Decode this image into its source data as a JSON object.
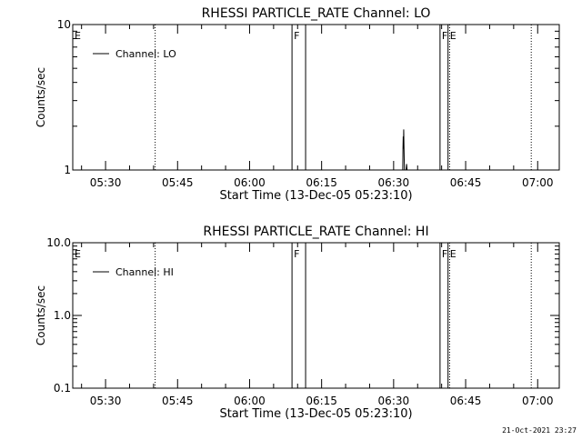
{
  "footer": {
    "timestamp": "21-Oct-2021 23:27"
  },
  "chart_data": [
    {
      "type": "line",
      "title": "RHESSI PARTICLE_RATE Channel: LO",
      "xlabel": "Start Time (13-Dec-05 05:23:10)",
      "ylabel": "Counts/sec",
      "xlim": [
        "05:23:10",
        "07:04:30"
      ],
      "ylim": [
        1,
        10
      ],
      "yscale": "log",
      "xticks": [
        "05:30",
        "05:45",
        "06:00",
        "06:15",
        "06:30",
        "06:45",
        "07:00"
      ],
      "yticks": [
        "1",
        "10"
      ],
      "legend": {
        "placement": "top-left",
        "entries": [
          "Channel: LO"
        ]
      },
      "series": [
        {
          "name": "Channel: LO",
          "points": [
            [
              "06:31:54",
              1.0
            ],
            [
              "06:31:57",
              1.4
            ],
            [
              "06:32:00",
              1.7
            ],
            [
              "06:32:03",
              1.4
            ],
            [
              "06:32:06",
              1.9
            ],
            [
              "06:32:09",
              1.5
            ],
            [
              "06:32:12",
              1.2
            ],
            [
              "06:32:15",
              1.0
            ],
            [
              "06:32:36",
              1.0
            ],
            [
              "06:32:42",
              1.1
            ],
            [
              "06:32:48",
              1.0
            ]
          ]
        }
      ],
      "markers": [
        {
          "time": "05:23:10",
          "label": "E",
          "style": "solid"
        },
        {
          "time": "05:40:20",
          "label": "",
          "style": "dotted"
        },
        {
          "time": "06:08:50",
          "label": "F",
          "style": "solid"
        },
        {
          "time": "06:11:40",
          "label": "",
          "style": "solid"
        },
        {
          "time": "06:39:40",
          "label": "F",
          "style": "solid"
        },
        {
          "time": "06:41:20",
          "label": "E",
          "style": "solid"
        },
        {
          "time": "06:41:40",
          "label": "",
          "style": "dotted"
        },
        {
          "time": "06:58:40",
          "label": "",
          "style": "dotted"
        }
      ]
    },
    {
      "type": "line",
      "title": "RHESSI PARTICLE_RATE Channel: HI",
      "xlabel": "Start Time (13-Dec-05 05:23:10)",
      "ylabel": "Counts/sec",
      "xlim": [
        "05:23:10",
        "07:04:30"
      ],
      "ylim": [
        0.1,
        10
      ],
      "yscale": "log",
      "xticks": [
        "05:30",
        "05:45",
        "06:00",
        "06:15",
        "06:30",
        "06:45",
        "07:00"
      ],
      "yticks": [
        "0.1",
        "1.0",
        "10.0"
      ],
      "legend": {
        "placement": "top-left",
        "entries": [
          "Channel: HI"
        ]
      },
      "series": [
        {
          "name": "Channel: HI",
          "points": []
        }
      ],
      "markers": [
        {
          "time": "05:23:10",
          "label": "E",
          "style": "solid"
        },
        {
          "time": "05:40:20",
          "label": "",
          "style": "dotted"
        },
        {
          "time": "06:08:50",
          "label": "F",
          "style": "solid"
        },
        {
          "time": "06:11:40",
          "label": "",
          "style": "solid"
        },
        {
          "time": "06:39:40",
          "label": "F",
          "style": "solid"
        },
        {
          "time": "06:41:20",
          "label": "E",
          "style": "solid"
        },
        {
          "time": "06:41:40",
          "label": "",
          "style": "dotted"
        },
        {
          "time": "06:58:40",
          "label": "",
          "style": "dotted"
        }
      ]
    }
  ]
}
